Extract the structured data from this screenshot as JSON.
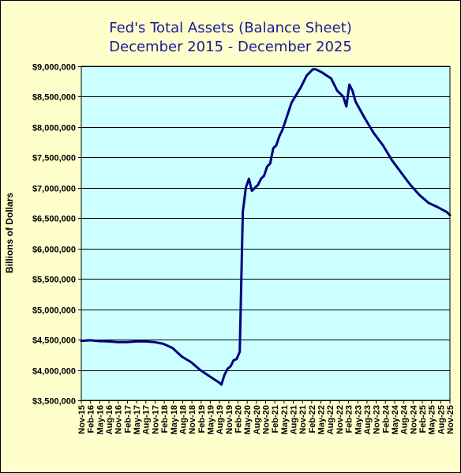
{
  "chart_data": {
    "type": "line",
    "title": [
      "Fed's Total Assets (Balance Sheet)",
      "December  2015 - December  2025"
    ],
    "ylabel": "Billions  of Dollars",
    "xlabel": "",
    "ylim": [
      3500000,
      9000000
    ],
    "yticks": [
      3500000,
      4000000,
      4500000,
      5000000,
      5500000,
      6000000,
      6500000,
      7000000,
      7500000,
      8000000,
      8500000,
      9000000
    ],
    "ytick_labels": [
      "$3,500,000",
      "$4,000,000",
      "$4,500,000",
      "$5,000,000",
      "$5,500,000",
      "$6,000,000",
      "$6,500,000",
      "$7,000,000",
      "$7,500,000",
      "$8,000,000",
      "$8,500,000",
      "$9,000,000"
    ],
    "xlim": [
      "2015-11",
      "2025-12"
    ],
    "xtick_labels": [
      "Nov-15",
      "Feb-16",
      "May-16",
      "Aug-16",
      "Nov-16",
      "Feb-17",
      "May-17",
      "Aug-17",
      "Nov-17",
      "Feb-18",
      "May-18",
      "Aug-18",
      "Nov-18",
      "Feb-19",
      "May-19",
      "Aug-19",
      "Nov-19",
      "Feb-20",
      "May-20",
      "Aug-20",
      "Nov-20",
      "Feb-21",
      "May-21",
      "Aug-21",
      "Nov-21",
      "Feb-22",
      "May-22",
      "Aug-22",
      "Nov-22",
      "Feb-23",
      "May-23",
      "Aug-23",
      "Nov-23",
      "Feb-24",
      "May-24",
      "Aug-24",
      "Nov-24",
      "Feb-25",
      "May-25",
      "Aug-25",
      "Nov-25"
    ],
    "grid": true,
    "colors": {
      "background": "#ffffcc",
      "plot_area": "#ccffff",
      "line": "#000080",
      "title": "#1a1a99"
    },
    "series": [
      {
        "x": [
          "2015-11",
          "2016-02",
          "2016-05",
          "2016-08",
          "2016-11",
          "2017-02",
          "2017-05",
          "2017-08",
          "2017-11",
          "2018-02",
          "2018-05",
          "2018-08",
          "2018-11",
          "2019-02",
          "2019-05",
          "2019-08",
          "2019-09",
          "2019-10",
          "2019-11",
          "2019-12",
          "2020-01",
          "2020-02",
          "2020-03",
          "2020-04",
          "2020-05",
          "2020-06",
          "2020-07",
          "2020-08",
          "2020-09",
          "2020-10",
          "2020-11",
          "2020-12",
          "2021-01",
          "2021-02",
          "2021-03",
          "2021-04",
          "2021-05",
          "2021-06",
          "2021-08",
          "2021-11",
          "2022-01",
          "2022-03",
          "2022-04",
          "2022-06",
          "2022-09",
          "2022-11",
          "2023-01",
          "2023-02",
          "2023-03",
          "2023-04",
          "2023-05",
          "2023-08",
          "2023-11",
          "2024-02",
          "2024-05",
          "2024-08",
          "2024-11",
          "2025-02",
          "2025-05",
          "2025-08",
          "2025-11",
          "2025-12"
        ],
        "values": [
          4480000,
          4490000,
          4475000,
          4470000,
          4460000,
          4460000,
          4470000,
          4470000,
          4460000,
          4430000,
          4360000,
          4220000,
          4130000,
          4000000,
          3900000,
          3800000,
          3760000,
          3920000,
          4020000,
          4060000,
          4160000,
          4180000,
          4300000,
          6600000,
          7000000,
          7150000,
          6950000,
          7000000,
          7050000,
          7150000,
          7200000,
          7350000,
          7400000,
          7650000,
          7700000,
          7850000,
          7950000,
          8100000,
          8400000,
          8650000,
          8850000,
          8950000,
          8950000,
          8900000,
          8800000,
          8600000,
          8500000,
          8340000,
          8700000,
          8600000,
          8420000,
          8150000,
          7900000,
          7700000,
          7450000,
          7250000,
          7050000,
          6880000,
          6750000,
          6680000,
          6600000,
          6550000
        ]
      }
    ]
  }
}
